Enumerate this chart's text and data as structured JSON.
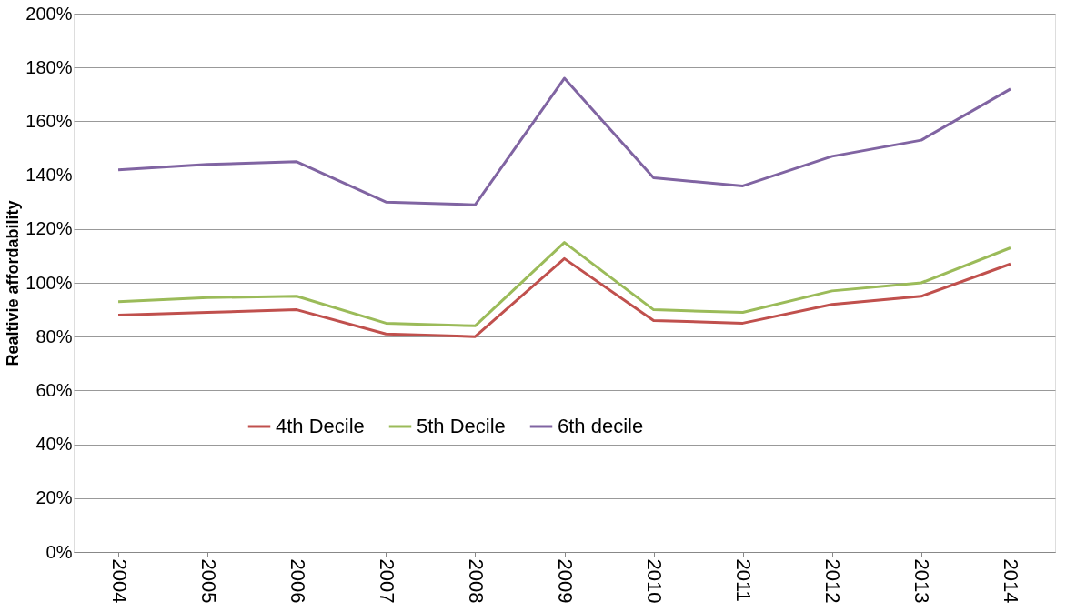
{
  "chart_data": {
    "type": "line",
    "ylabel": "Realtivie affordability",
    "categories": [
      "2004",
      "2005",
      "2006",
      "2007",
      "2008",
      "2009",
      "2010",
      "2011",
      "2012",
      "2013",
      "2014"
    ],
    "series": [
      {
        "name": "4th Decile",
        "color": "#c0504d",
        "values": [
          88,
          89,
          90,
          81,
          80,
          109,
          86,
          85,
          92,
          95,
          107
        ]
      },
      {
        "name": "5th Decile",
        "color": "#9bbb59",
        "values": [
          93,
          94.5,
          95,
          85,
          84,
          115,
          90,
          89,
          97,
          100,
          113
        ]
      },
      {
        "name": "6th decile",
        "color": "#8064a2",
        "values": [
          142,
          144,
          145,
          130,
          129,
          176,
          139,
          136,
          147,
          153,
          172
        ]
      }
    ],
    "ylim": [
      0,
      200
    ],
    "yticks": [
      {
        "value": 0,
        "label": "0%"
      },
      {
        "value": 20,
        "label": "20%"
      },
      {
        "value": 40,
        "label": "40%"
      },
      {
        "value": 60,
        "label": "60%"
      },
      {
        "value": 80,
        "label": "80%"
      },
      {
        "value": 100,
        "label": "100%"
      },
      {
        "value": 120,
        "label": "120%"
      },
      {
        "value": 140,
        "label": "140%"
      },
      {
        "value": 160,
        "label": "160%"
      },
      {
        "value": 180,
        "label": "180%"
      },
      {
        "value": 200,
        "label": "200%"
      }
    ],
    "grid": "y",
    "legend": "bottom",
    "marker": "none",
    "line_style": "solid"
  }
}
